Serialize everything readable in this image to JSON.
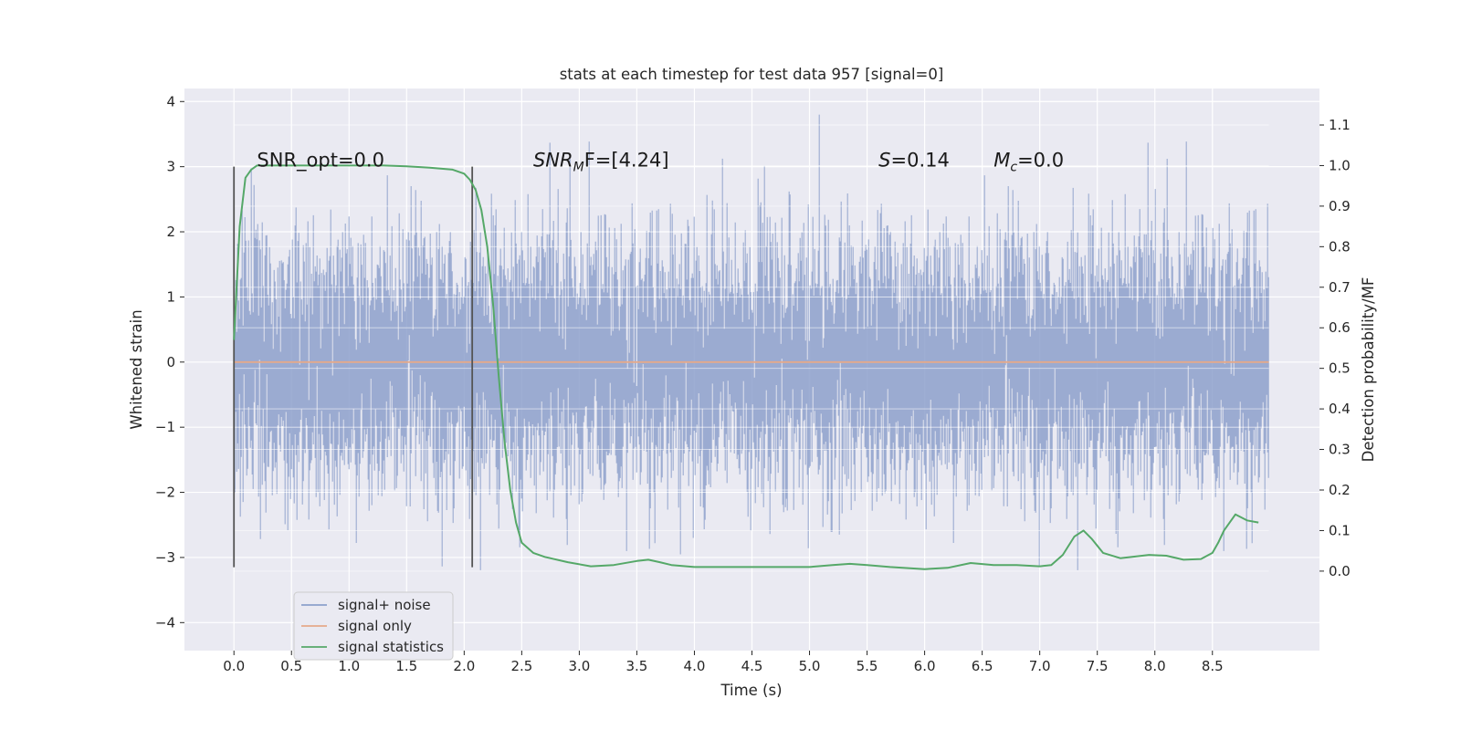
{
  "chart_data": {
    "type": "line",
    "title": "stats at each timestep for test data 957 [signal=0]",
    "xlabel": "Time (s)",
    "ylabel_left": "Whitened strain",
    "ylabel_right": "Detection probability/MF",
    "xlim": [
      -0.43,
      9.43
    ],
    "ylim_left": [
      -4.43,
      4.2
    ],
    "ylim_right": [
      -0.196,
      1.19
    ],
    "x_ticks": [
      "0.0",
      "0.5",
      "1.0",
      "1.5",
      "2.0",
      "2.5",
      "3.0",
      "3.5",
      "4.0",
      "4.5",
      "5.0",
      "5.5",
      "6.0",
      "6.5",
      "7.0",
      "7.5",
      "8.0",
      "8.5"
    ],
    "x_tick_values": [
      0,
      0.5,
      1,
      1.5,
      2,
      2.5,
      3,
      3.5,
      4,
      4.5,
      5,
      5.5,
      6,
      6.5,
      7,
      7.5,
      8,
      8.5
    ],
    "y_left_ticks": [
      "−4",
      "−3",
      "−2",
      "−1",
      "0",
      "1",
      "2",
      "3",
      "4"
    ],
    "y_left_tick_values": [
      -4,
      -3,
      -2,
      -1,
      0,
      1,
      2,
      3,
      4
    ],
    "y_right_ticks": [
      "0.0",
      "0.1",
      "0.2",
      "0.3",
      "0.4",
      "0.5",
      "0.6",
      "0.7",
      "0.8",
      "0.9",
      "1.0",
      "1.1"
    ],
    "y_right_tick_values": [
      0,
      0.1,
      0.2,
      0.3,
      0.4,
      0.5,
      0.6,
      0.7,
      0.8,
      0.9,
      1.0,
      1.1
    ],
    "grid": true,
    "legend_position": "lower-left",
    "annotations": [
      {
        "text": "SNR_opt=0.0",
        "x": 0.2,
        "y": 3.0,
        "axis": "left"
      },
      {
        "text_main": "SNR",
        "text_sub": "M",
        "text_tail": "F=[4.24]",
        "x": 2.6,
        "y": 3.0,
        "axis": "left"
      },
      {
        "text_main": "S",
        "text_tail": "=0.14",
        "x": 5.6,
        "y": 3.0,
        "axis": "left"
      },
      {
        "text_main": "M",
        "text_sub": "c",
        "text_tail": "=0.0",
        "x": 6.6,
        "y": 3.0,
        "axis": "left"
      }
    ],
    "vlines": [
      {
        "x": 0.0,
        "ymin": -3.15,
        "ymax": 3.0
      },
      {
        "x": 2.07,
        "ymin": -3.15,
        "ymax": 3.0
      }
    ],
    "series": [
      {
        "name": "signal+ noise",
        "axis": "left",
        "style": "noise",
        "x_range": [
          0.0,
          8.99
        ],
        "sigma": 0.9,
        "peak_max": 3.8,
        "peak_min": -4.0,
        "color": "#8da0cb"
      },
      {
        "name": "signal only",
        "axis": "left",
        "x": [
          0.0,
          8.99
        ],
        "y": [
          0.0,
          0.0
        ],
        "color": "#e5a98a"
      },
      {
        "name": "signal statistics",
        "axis": "right",
        "color": "#55a868",
        "x": [
          0.0,
          0.05,
          0.1,
          0.15,
          0.2,
          0.3,
          0.5,
          0.8,
          1.0,
          1.3,
          1.5,
          1.7,
          1.9,
          2.0,
          2.05,
          2.1,
          2.15,
          2.2,
          2.25,
          2.3,
          2.35,
          2.4,
          2.45,
          2.5,
          2.6,
          2.7,
          2.9,
          3.1,
          3.3,
          3.5,
          3.6,
          3.7,
          3.8,
          4.0,
          4.3,
          4.6,
          5.0,
          5.2,
          5.35,
          5.5,
          5.7,
          6.0,
          6.2,
          6.4,
          6.6,
          6.8,
          7.0,
          7.1,
          7.2,
          7.3,
          7.38,
          7.45,
          7.55,
          7.7,
          7.95,
          8.1,
          8.25,
          8.4,
          8.5,
          8.55,
          8.6,
          8.7,
          8.8,
          8.9
        ],
        "y": [
          0.57,
          0.85,
          0.97,
          0.99,
          1.0,
          1.0,
          1.0,
          1.0,
          1.0,
          1.0,
          0.998,
          0.995,
          0.99,
          0.98,
          0.965,
          0.94,
          0.89,
          0.8,
          0.66,
          0.48,
          0.32,
          0.2,
          0.12,
          0.07,
          0.045,
          0.035,
          0.022,
          0.012,
          0.015,
          0.025,
          0.028,
          0.022,
          0.015,
          0.01,
          0.01,
          0.01,
          0.01,
          0.015,
          0.018,
          0.015,
          0.01,
          0.005,
          0.008,
          0.02,
          0.015,
          0.015,
          0.012,
          0.015,
          0.04,
          0.085,
          0.1,
          0.08,
          0.045,
          0.032,
          0.04,
          0.038,
          0.028,
          0.03,
          0.045,
          0.07,
          0.1,
          0.14,
          0.125,
          0.12
        ]
      }
    ]
  }
}
